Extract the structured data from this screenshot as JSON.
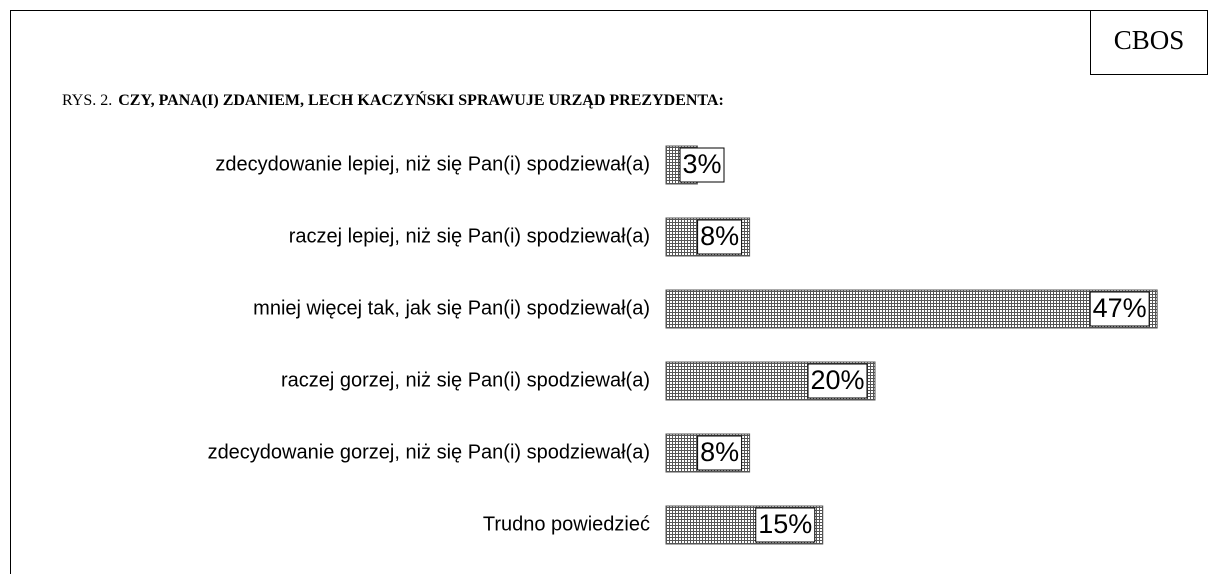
{
  "chart_data": {
    "type": "bar",
    "orientation": "horizontal",
    "source": "CBOS",
    "figure_label": "RYS. 2.",
    "title": "CZY, PANA(I) ZDANIEM, LECH KACZYŃSKI SPRAWUJE URZĄD PREZYDENTA:",
    "categories": [
      "zdecydowanie lepiej, niż się Pan(i) spodziewał(a)",
      "raczej lepiej, niż się Pan(i) spodziewał(a)",
      "mniej więcej tak, jak się Pan(i) spodziewał(a)",
      "raczej gorzej, niż się Pan(i) spodziewał(a)",
      "zdecydowanie gorzej, niż się Pan(i) spodziewał(a)",
      "Trudno powiedzieć"
    ],
    "values": [
      3,
      8,
      47,
      20,
      8,
      15
    ],
    "value_labels": [
      "3%",
      "8%",
      "47%",
      "20%",
      "8%",
      "15%"
    ],
    "color": "#555555"
  }
}
